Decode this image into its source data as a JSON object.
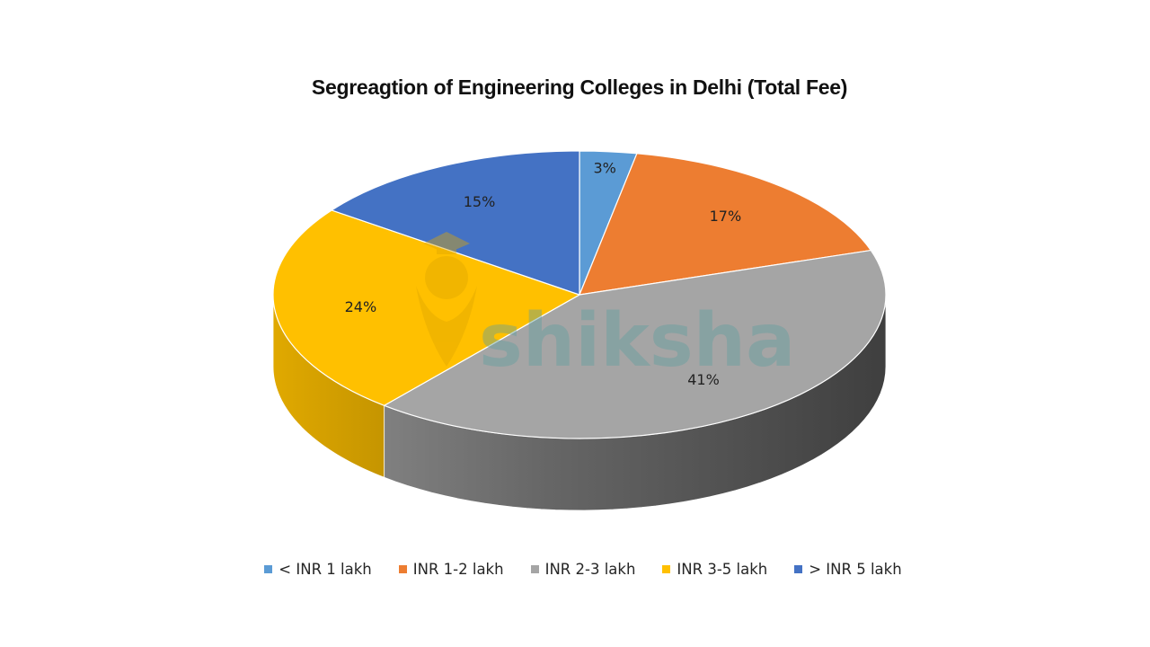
{
  "chart_data": {
    "type": "pie",
    "title": "Segreagtion of Engineering Colleges in Delhi (Total Fee)",
    "slices": [
      {
        "label": "< INR 1 lakh",
        "value": 3,
        "display": "3%",
        "color": "#5B9BD5"
      },
      {
        "label": "INR 1-2 lakh",
        "value": 17,
        "display": "17%",
        "color": "#ED7D31"
      },
      {
        "label": "INR 2-3 lakh",
        "value": 41,
        "display": "41%",
        "color": "#A5A5A5"
      },
      {
        "label": "INR 3-5 lakh",
        "value": 24,
        "display": "24%",
        "color": "#FFC000"
      },
      {
        "label": "> INR 5 lakh",
        "value": 15,
        "display": "15%",
        "color": "#4472C4"
      }
    ],
    "legend_position": "bottom",
    "style": "3d-pie"
  },
  "watermark": {
    "text": "shiksha",
    "color": "#5f9ea0"
  }
}
